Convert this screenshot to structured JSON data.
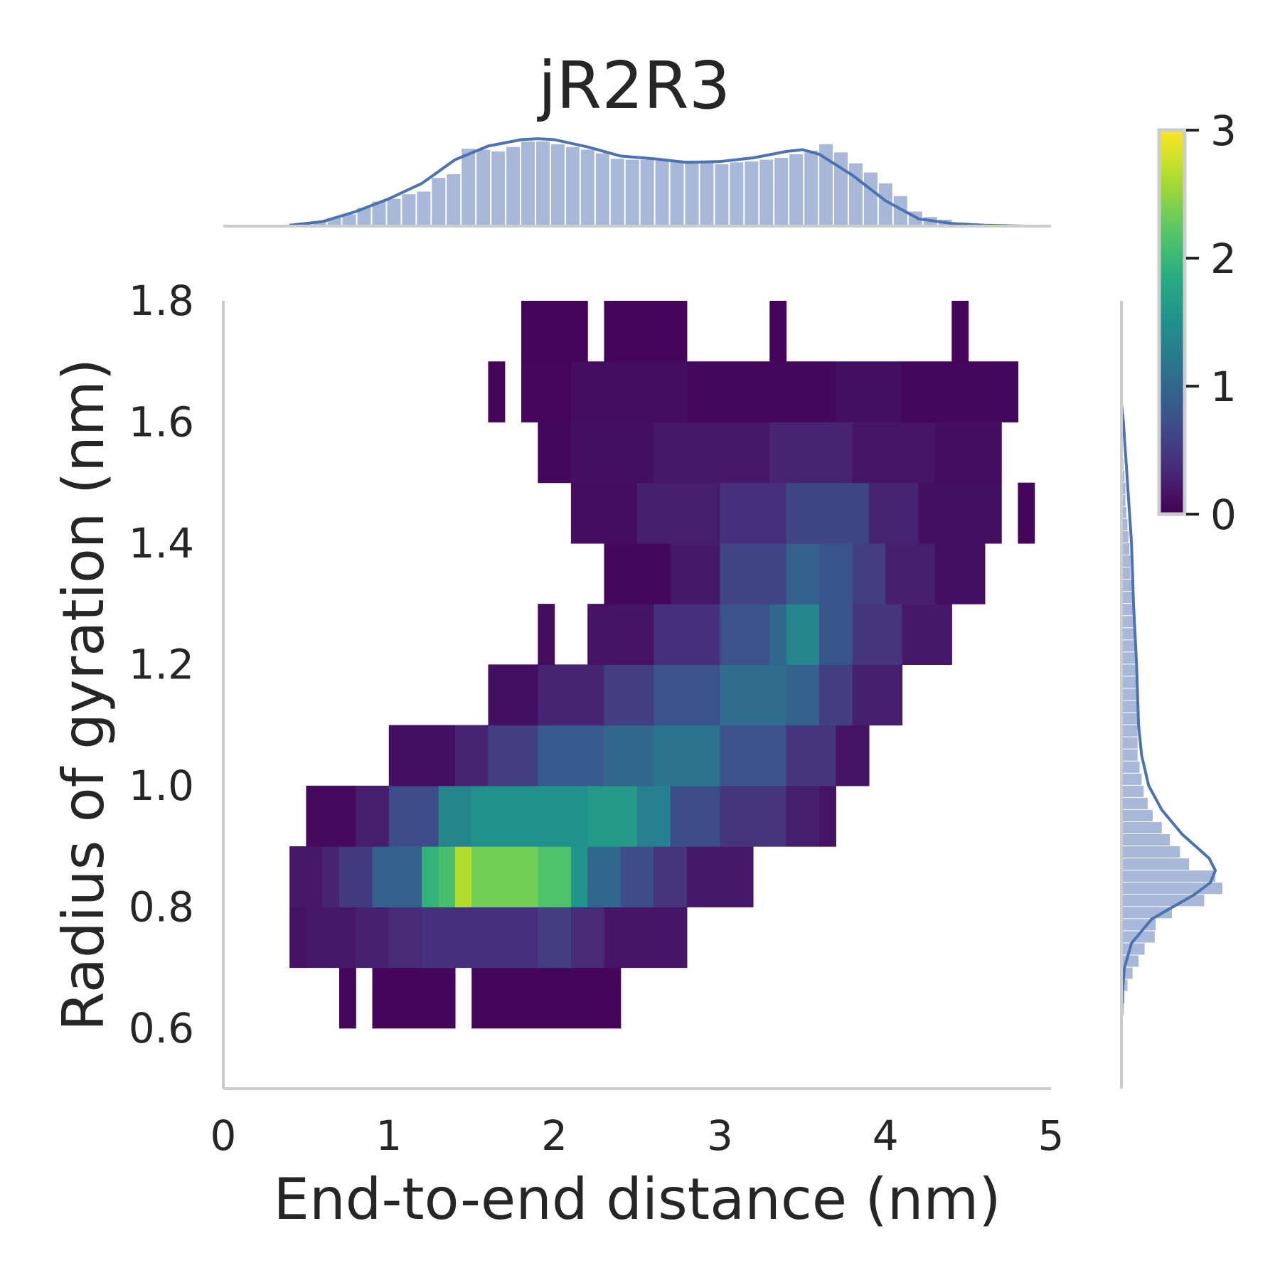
{
  "chart_data": {
    "type": "heatmap",
    "title": "jR2R3",
    "xlabel": "End-to-end distance (nm)",
    "ylabel": "Radius of gyration (nm)",
    "xlim": [
      0,
      5
    ],
    "ylim": [
      0.5,
      1.8
    ],
    "x_ticks": [
      "0",
      "1",
      "2",
      "3",
      "4",
      "5"
    ],
    "y_ticks": [
      "0.6",
      "0.8",
      "1.0",
      "1.2",
      "1.4",
      "1.6",
      "1.8"
    ],
    "colorbar": {
      "colormap": "viridis",
      "range": [
        0,
        3
      ],
      "ticks": [
        "0",
        "1",
        "2",
        "3"
      ]
    },
    "heatmap": {
      "x_bin_width": 0.1,
      "y_bin_edges": [
        0.6,
        0.7,
        0.8,
        0.9,
        1.0,
        1.1,
        1.2,
        1.3,
        1.4,
        1.5,
        1.6,
        1.7,
        1.8
      ],
      "cells": [
        [
          0.7,
          0.8,
          0.6,
          0.06
        ],
        [
          0.9,
          1.4,
          0.6,
          0.04
        ],
        [
          1.5,
          2.4,
          0.6,
          0.04
        ],
        [
          0.4,
          0.5,
          0.7,
          0.14
        ],
        [
          0.5,
          0.8,
          0.7,
          0.2
        ],
        [
          0.8,
          1.0,
          0.7,
          0.28
        ],
        [
          1.0,
          1.2,
          0.7,
          0.35
        ],
        [
          1.2,
          1.9,
          0.7,
          0.4
        ],
        [
          1.9,
          2.1,
          0.7,
          0.55
        ],
        [
          2.1,
          2.3,
          0.7,
          0.35
        ],
        [
          2.3,
          2.8,
          0.7,
          0.18
        ],
        [
          0.4,
          0.6,
          0.8,
          0.2
        ],
        [
          0.6,
          0.7,
          0.8,
          0.3
        ],
        [
          0.7,
          0.9,
          0.8,
          0.5
        ],
        [
          0.9,
          1.2,
          0.8,
          0.95
        ],
        [
          1.2,
          1.3,
          0.8,
          1.95
        ],
        [
          1.3,
          1.4,
          0.8,
          2.1
        ],
        [
          1.4,
          1.5,
          0.8,
          2.65
        ],
        [
          1.5,
          1.9,
          0.8,
          2.35
        ],
        [
          1.9,
          2.1,
          0.8,
          2.15
        ],
        [
          2.1,
          2.2,
          0.8,
          1.55
        ],
        [
          2.2,
          2.4,
          0.8,
          1.0
        ],
        [
          2.4,
          2.6,
          0.8,
          0.7
        ],
        [
          2.6,
          2.8,
          0.8,
          0.45
        ],
        [
          2.8,
          3.2,
          0.8,
          0.2
        ],
        [
          0.5,
          0.8,
          0.9,
          0.08
        ],
        [
          0.8,
          1.0,
          0.9,
          0.25
        ],
        [
          1.0,
          1.3,
          0.9,
          0.7
        ],
        [
          1.3,
          1.5,
          0.9,
          1.35
        ],
        [
          1.5,
          2.2,
          0.9,
          1.5
        ],
        [
          2.2,
          2.5,
          0.9,
          1.62
        ],
        [
          2.5,
          2.7,
          0.9,
          1.3
        ],
        [
          2.7,
          3.0,
          0.9,
          0.7
        ],
        [
          3.0,
          3.4,
          0.9,
          0.45
        ],
        [
          3.4,
          3.6,
          0.9,
          0.25
        ],
        [
          3.6,
          3.7,
          0.9,
          0.15
        ],
        [
          1.0,
          1.4,
          1.0,
          0.12
        ],
        [
          1.4,
          1.6,
          1.0,
          0.3
        ],
        [
          1.6,
          1.9,
          1.0,
          0.55
        ],
        [
          1.9,
          2.3,
          1.0,
          0.85
        ],
        [
          2.3,
          2.6,
          1.0,
          1.0
        ],
        [
          2.6,
          3.0,
          1.0,
          1.15
        ],
        [
          3.0,
          3.4,
          1.0,
          0.75
        ],
        [
          3.4,
          3.7,
          1.0,
          0.45
        ],
        [
          3.7,
          3.9,
          1.0,
          0.15
        ],
        [
          1.6,
          1.9,
          1.1,
          0.12
        ],
        [
          1.9,
          2.3,
          1.1,
          0.3
        ],
        [
          2.3,
          2.6,
          1.1,
          0.55
        ],
        [
          2.6,
          3.0,
          1.1,
          0.75
        ],
        [
          3.0,
          3.4,
          1.1,
          1.05
        ],
        [
          3.4,
          3.6,
          1.1,
          0.95
        ],
        [
          3.6,
          3.8,
          1.1,
          0.55
        ],
        [
          3.8,
          4.1,
          1.1,
          0.25
        ],
        [
          1.9,
          2.0,
          1.2,
          0.1
        ],
        [
          2.2,
          2.6,
          1.2,
          0.15
        ],
        [
          2.6,
          3.0,
          1.2,
          0.4
        ],
        [
          3.0,
          3.3,
          1.2,
          0.75
        ],
        [
          3.3,
          3.4,
          1.2,
          1.0
        ],
        [
          3.4,
          3.6,
          1.2,
          1.35
        ],
        [
          3.6,
          3.8,
          1.2,
          0.8
        ],
        [
          3.8,
          4.1,
          1.2,
          0.45
        ],
        [
          4.1,
          4.4,
          1.2,
          0.2
        ],
        [
          2.3,
          2.7,
          1.3,
          0.06
        ],
        [
          2.7,
          3.0,
          1.3,
          0.2
        ],
        [
          3.0,
          3.4,
          1.3,
          0.6
        ],
        [
          3.4,
          3.6,
          1.3,
          0.95
        ],
        [
          3.6,
          3.8,
          1.3,
          0.8
        ],
        [
          3.8,
          4.0,
          1.3,
          0.55
        ],
        [
          4.0,
          4.3,
          1.3,
          0.25
        ],
        [
          4.3,
          4.6,
          1.3,
          0.12
        ],
        [
          2.1,
          2.5,
          1.4,
          0.1
        ],
        [
          2.5,
          3.0,
          1.4,
          0.25
        ],
        [
          3.0,
          3.4,
          1.4,
          0.4
        ],
        [
          3.4,
          3.9,
          1.4,
          0.62
        ],
        [
          3.9,
          4.2,
          1.4,
          0.3
        ],
        [
          4.2,
          4.7,
          1.4,
          0.12
        ],
        [
          4.8,
          4.9,
          1.4,
          0.04
        ],
        [
          1.9,
          2.1,
          1.5,
          0.06
        ],
        [
          2.1,
          2.6,
          1.5,
          0.12
        ],
        [
          2.6,
          3.3,
          1.5,
          0.2
        ],
        [
          3.3,
          3.8,
          1.5,
          0.3
        ],
        [
          3.8,
          4.3,
          1.5,
          0.18
        ],
        [
          4.3,
          4.7,
          1.5,
          0.1
        ],
        [
          1.6,
          1.7,
          1.6,
          0.04
        ],
        [
          1.8,
          2.1,
          1.6,
          0.05
        ],
        [
          2.1,
          2.8,
          1.6,
          0.1
        ],
        [
          2.8,
          3.7,
          1.6,
          0.06
        ],
        [
          3.7,
          4.1,
          1.6,
          0.12
        ],
        [
          4.1,
          4.8,
          1.6,
          0.06
        ],
        [
          1.8,
          2.2,
          1.7,
          0.04
        ],
        [
          2.3,
          2.8,
          1.7,
          0.04
        ],
        [
          3.3,
          3.4,
          1.7,
          0.04
        ],
        [
          4.4,
          4.5,
          1.7,
          0.04
        ]
      ]
    },
    "marginal_x": {
      "hist_bin_width": 0.09,
      "hist_x_start": 0.45,
      "hist_heights": [
        0.02,
        0.05,
        0.09,
        0.13,
        0.2,
        0.27,
        0.3,
        0.35,
        0.38,
        0.53,
        0.57,
        0.85,
        0.84,
        0.82,
        0.87,
        0.93,
        0.93,
        0.9,
        0.87,
        0.84,
        0.8,
        0.74,
        0.73,
        0.73,
        0.72,
        0.71,
        0.72,
        0.7,
        0.68,
        0.7,
        0.71,
        0.73,
        0.75,
        0.79,
        0.83,
        0.9,
        0.81,
        0.69,
        0.59,
        0.47,
        0.33,
        0.16,
        0.1,
        0.07,
        0.04,
        0.02,
        0.02,
        0.01
      ],
      "kde_x": [
        0.4,
        0.6,
        0.8,
        1.0,
        1.2,
        1.4,
        1.6,
        1.8,
        1.9,
        2.0,
        2.2,
        2.4,
        2.6,
        2.8,
        3.0,
        3.2,
        3.4,
        3.5,
        3.6,
        3.8,
        4.0,
        4.2,
        4.4,
        4.6,
        4.85
      ],
      "kde_y": [
        0.01,
        0.05,
        0.16,
        0.3,
        0.47,
        0.73,
        0.88,
        0.95,
        0.96,
        0.95,
        0.87,
        0.77,
        0.74,
        0.7,
        0.71,
        0.75,
        0.82,
        0.84,
        0.79,
        0.56,
        0.28,
        0.08,
        0.03,
        0.01,
        0.0
      ]
    },
    "marginal_y": {
      "hist_bin_width": 0.02,
      "hist_y_start": 0.62,
      "hist_widths": [
        0.02,
        0.03,
        0.06,
        0.11,
        0.17,
        0.23,
        0.33,
        0.34,
        0.5,
        0.82,
        1.0,
        0.93,
        0.67,
        0.58,
        0.48,
        0.4,
        0.31,
        0.26,
        0.22,
        0.2,
        0.18,
        0.16,
        0.16,
        0.16,
        0.16,
        0.16,
        0.16,
        0.15,
        0.14,
        0.14,
        0.13,
        0.13,
        0.12,
        0.12,
        0.11,
        0.1,
        0.09,
        0.09,
        0.08,
        0.07,
        0.06,
        0.05,
        0.04,
        0.04,
        0.03,
        0.02,
        0.01,
        0.01,
        0.01
      ],
      "kde_y": [
        0.62,
        0.66,
        0.7,
        0.74,
        0.78,
        0.82,
        0.84,
        0.86,
        0.88,
        0.92,
        0.96,
        1.0,
        1.05,
        1.1,
        1.2,
        1.3,
        1.4,
        1.5,
        1.6,
        1.63
      ],
      "kde_x": [
        0.0,
        0.01,
        0.03,
        0.1,
        0.3,
        0.72,
        0.88,
        0.93,
        0.87,
        0.6,
        0.4,
        0.27,
        0.2,
        0.17,
        0.15,
        0.12,
        0.1,
        0.06,
        0.02,
        0.0
      ]
    },
    "colors": {
      "hist": "#a7b8d8",
      "kde": "#4c72b0",
      "axis": "#cccccc",
      "text": "#262626"
    },
    "grid": false
  }
}
